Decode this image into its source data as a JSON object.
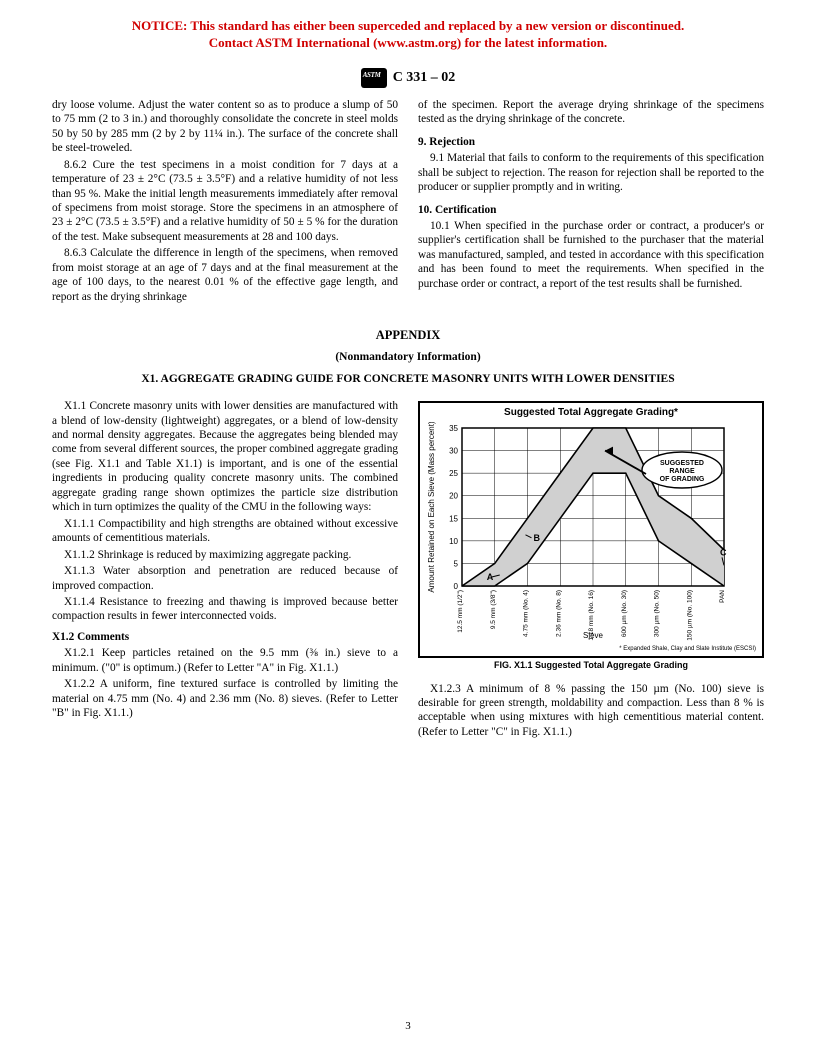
{
  "notice": {
    "line1": "NOTICE: This standard has either been superceded and replaced by a new version or discontinued.",
    "line2": "Contact ASTM International (www.astm.org) for the latest information."
  },
  "docNumber": "C 331 – 02",
  "pageNumber": "3",
  "col1": {
    "p861cont": "dry loose volume. Adjust the water content so as to produce a slump of 50 to 75 mm (2 to 3 in.) and thoroughly consolidate the concrete in steel molds 50 by 50 by 285 mm (2 by 2 by 11¼ in.). The surface of the concrete shall be steel-troweled.",
    "p862": "8.6.2 Cure the test specimens in a moist condition for 7 days at a temperature of 23 ± 2°C (73.5 ± 3.5°F) and a relative humidity of not less than 95 %. Make the initial length measurements immediately after removal of specimens from moist storage. Store the specimens in an atmosphere of 23 ± 2°C (73.5 ± 3.5°F) and a relative humidity of 50 ± 5 % for the duration of the test. Make subsequent measurements at 28 and 100 days.",
    "p863": "8.6.3 Calculate the difference in length of the specimens, when removed from moist storage at an age of 7 days and at the final measurement at the age of 100 days, to the nearest 0.01 % of the effective gage length, and report as the drying shrinkage"
  },
  "col2": {
    "p863cont": "of the specimen. Report the average drying shrinkage of the specimens tested as the drying shrinkage of the concrete.",
    "sec9": "9. Rejection",
    "p91": "9.1 Material that fails to conform to the requirements of this specification shall be subject to rejection. The reason for rejection shall be reported to the producer or supplier promptly and in writing.",
    "sec10": "10. Certification",
    "p101": "10.1 When specified in the purchase order or contract, a producer's or supplier's certification shall be furnished to the purchaser that the material was manufactured, sampled, and tested in accordance with this specification and has been found to meet the requirements. When specified in the purchase order or contract, a report of the test results shall be furnished."
  },
  "appendix": {
    "head": "APPENDIX",
    "sub": "(Nonmandatory Information)",
    "title": "X1. AGGREGATE GRADING GUIDE FOR CONCRETE MASONRY UNITS WITH LOWER DENSITIES"
  },
  "acol1": {
    "x11": "X1.1  Concrete masonry units with lower densities are manufactured with a blend of low-density (lightweight) aggregates, or a blend of low-density and normal density aggregates. Because the aggregates being blended may come from several different sources, the proper combined aggregate grading (see Fig. X1.1 and Table X1.1) is important, and is one of the essential ingredients in producing quality concrete masonry units. The combined aggregate grading range shown optimizes the particle size distribution which in turn optimizes the quality of the CMU in the following ways:",
    "x111": "X1.1.1 Compactibility and high strengths are obtained without excessive amounts of cementitious materials.",
    "x112": "X1.1.2 Shrinkage is reduced by maximizing aggregate packing.",
    "x113": "X1.1.3 Water absorption and penetration are reduced because of improved compaction.",
    "x114": "X1.1.4 Resistance to freezing and thawing is improved because better compaction results in fewer interconnected voids.",
    "x12head": "X1.2 Comments",
    "x121": "X1.2.1 Keep particles retained on the 9.5 mm (⅜ in.) sieve to a minimum. (\"0\" is optimum.) (Refer to Letter \"A\" in Fig. X1.1.)",
    "x122": "X1.2.2 A uniform, fine textured surface is controlled by limiting the material on 4.75 mm (No. 4) and 2.36 mm (No. 8) sieves. (Refer to Letter \"B\" in Fig. X1.1.)"
  },
  "acol2": {
    "x123": "X1.2.3 A minimum of 8 % passing the 150 µm (No. 100) sieve is desirable for green strength, moldability and compaction. Less than 8 % is acceptable when using mixtures with high cementitious material content. (Refer to Letter \"C\" in Fig. X1.1.)"
  },
  "chart": {
    "title": "Suggested Total Aggregate Grading*",
    "ylabel": "Amount Retained on Each Sieve (Mass percent)",
    "xlabel": "Sieve",
    "ylim": [
      0,
      35
    ],
    "yticks": [
      0,
      5,
      10,
      15,
      20,
      25,
      30,
      35
    ],
    "xticks": [
      "12.5 mm (1/2\")",
      "9.5 mm (3/8\")",
      "4.75 mm (No. 4)",
      "2.36 mm (No. 8)",
      "1.18 mm (No. 16)",
      "600 µm (No. 30)",
      "300 µm (No. 50)",
      "150 µm (No. 100)",
      "PAN"
    ],
    "upper": [
      0,
      5,
      15,
      25,
      35,
      35,
      20,
      15,
      8
    ],
    "lower": [
      0,
      0,
      5,
      15,
      25,
      25,
      10,
      5,
      0
    ],
    "band_fill": "#d0d0d0",
    "grid_color": "#000000",
    "line_width": 1.6,
    "annotation_label": "SUGGESTED RANGE OF GRADING",
    "markers": [
      "A",
      "B",
      "C"
    ],
    "marker_pos": {
      "A": [
        1,
        2
      ],
      "B": [
        2,
        10
      ],
      "C": [
        8,
        5
      ]
    },
    "footnote": "* Expanded Shale, Clay and Slate Institute (ESCSI)",
    "figcaption": "FIG. X1.1 Suggested Total Aggregate Grading"
  }
}
